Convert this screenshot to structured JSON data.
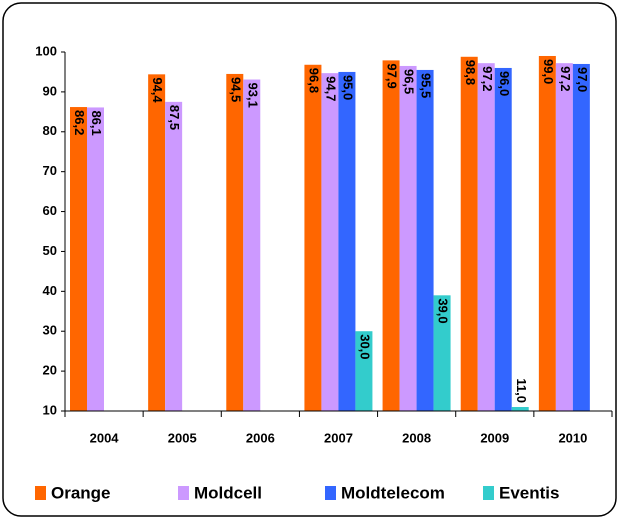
{
  "chart_data": {
    "type": "bar",
    "categories": [
      "2004",
      "2005",
      "2006",
      "2007",
      "2008",
      "2009",
      "2010"
    ],
    "series": [
      {
        "name": "Orange",
        "color": "#ff6600",
        "values": [
          86.2,
          94.4,
          94.5,
          96.8,
          97.9,
          98.8,
          99.0
        ],
        "value_labels": [
          "86,2",
          "94,4",
          "94,5",
          "96,8",
          "97,9",
          "98,8",
          "99,0"
        ]
      },
      {
        "name": "Moldcell",
        "color": "#cc99ff",
        "values": [
          86.1,
          87.5,
          93.1,
          94.7,
          96.5,
          97.2,
          97.2
        ],
        "value_labels": [
          "86,1",
          "87,5",
          "93,1",
          "94,7",
          "96,5",
          "97,2",
          "97,2"
        ]
      },
      {
        "name": "Moldtelecom",
        "color": "#3366ff",
        "values": [
          null,
          null,
          null,
          95.0,
          95.5,
          96.0,
          97.0
        ],
        "value_labels": [
          null,
          null,
          null,
          "95,0",
          "95,5",
          "96,0",
          "97,0"
        ]
      },
      {
        "name": "Eventis",
        "color": "#33cccc",
        "values": [
          null,
          null,
          null,
          30.0,
          39.0,
          11.0,
          null
        ],
        "value_labels": [
          null,
          null,
          null,
          "30,0",
          "39,0",
          "11,0",
          null
        ]
      }
    ],
    "ylim": [
      10,
      100
    ],
    "yticks": [
      10,
      20,
      30,
      40,
      50,
      60,
      70,
      80,
      90,
      100
    ],
    "grid": false,
    "legend": "bottom"
  }
}
